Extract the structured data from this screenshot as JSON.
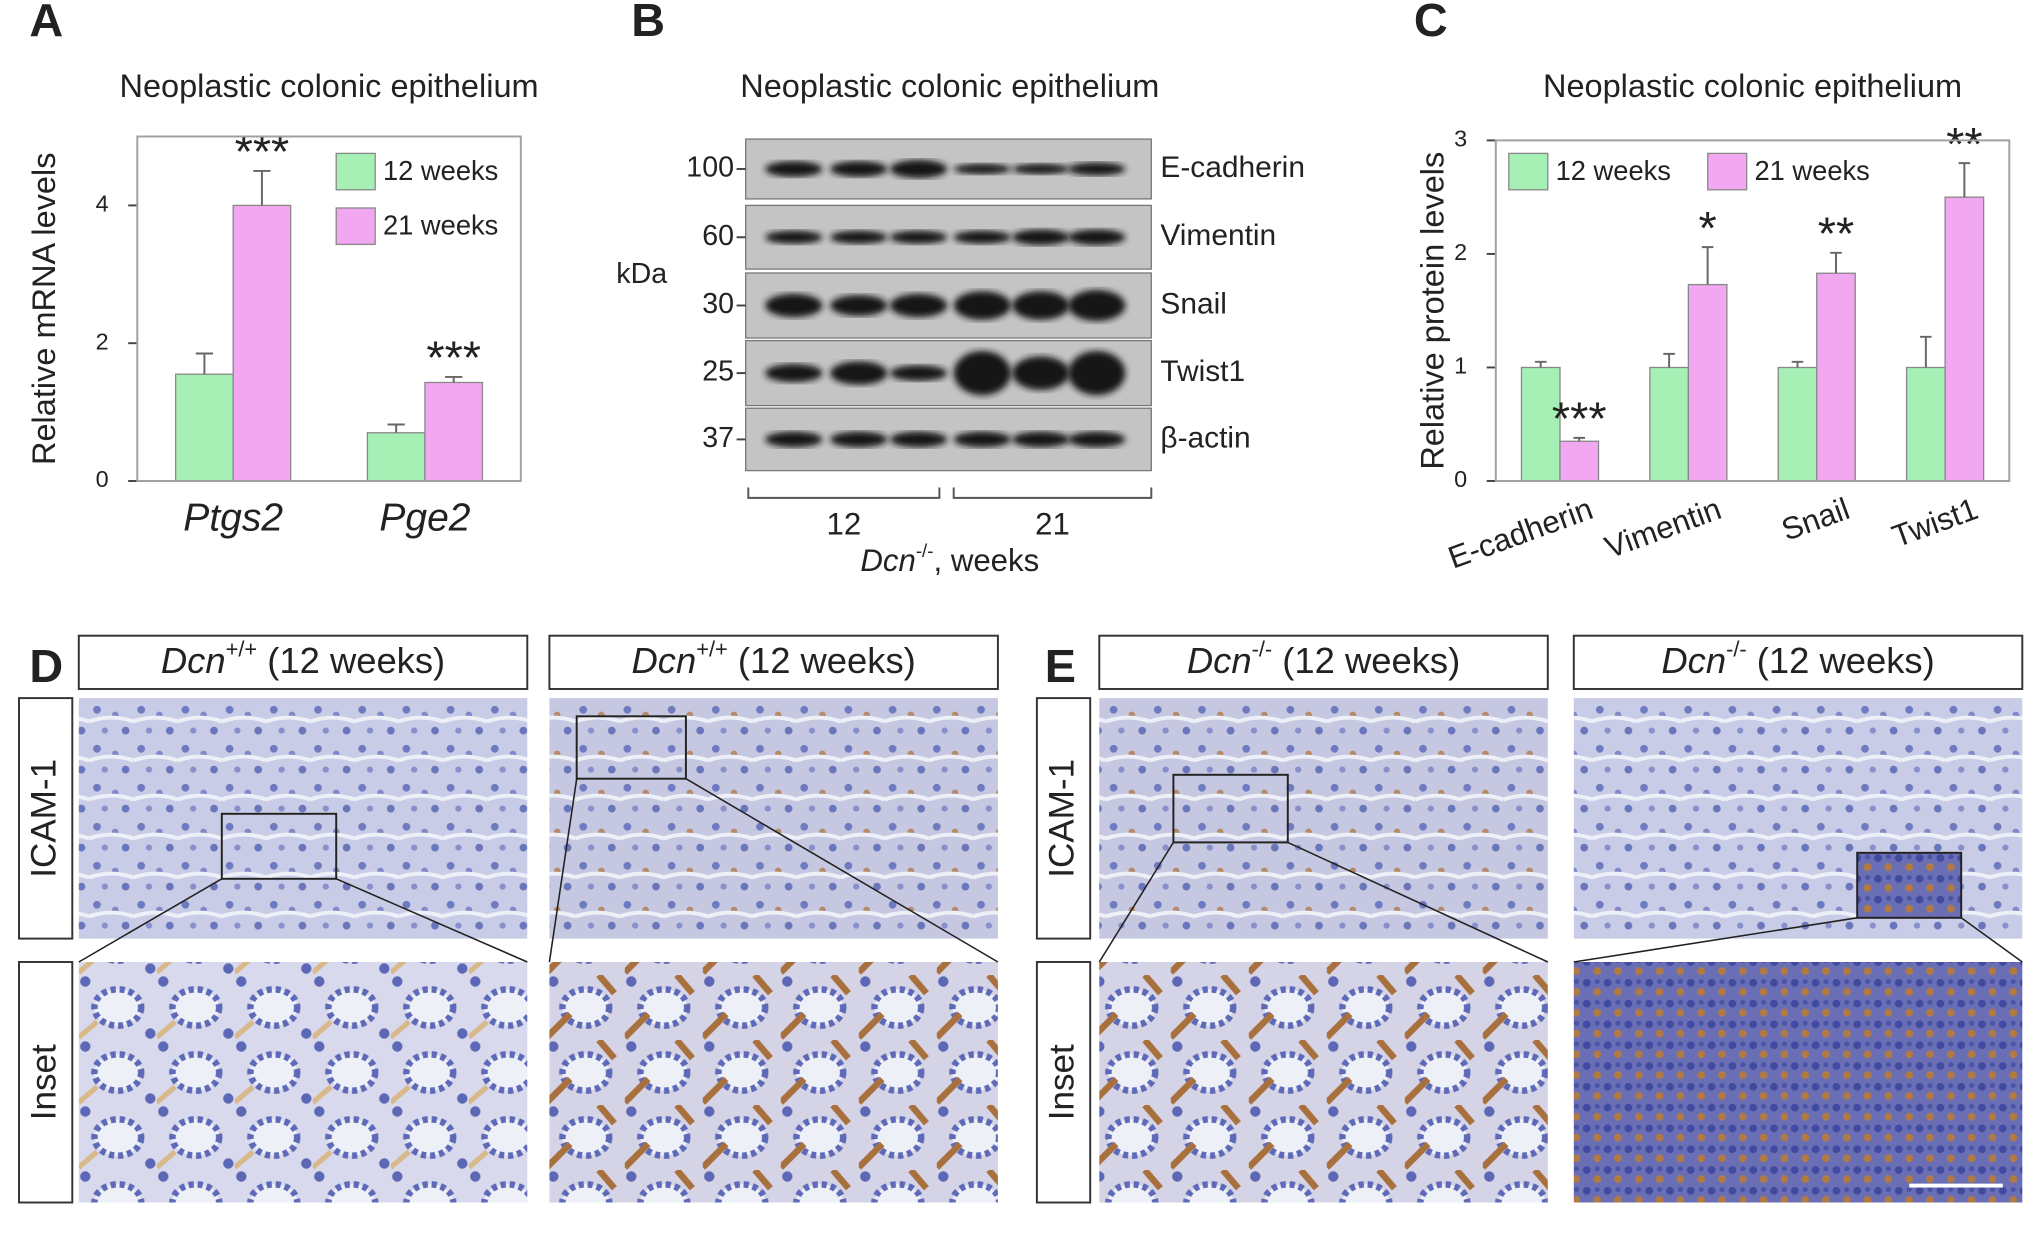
{
  "panel_labels": [
    "A",
    "B",
    "C",
    "D",
    "E"
  ],
  "chart_data": [
    {
      "type": "bar",
      "title": "Neoplastic colonic epithelium",
      "y_label": "Relative mRNA levels",
      "categories": [
        "Ptgs2",
        "Pge2"
      ],
      "series": [
        {
          "name": "12 weeks",
          "color": "#a6f0b6",
          "values": [
            1.55,
            0.7
          ],
          "errors": [
            0.3,
            0.12
          ]
        },
        {
          "name": "21 weeks",
          "color": "#f2a8f0",
          "values": [
            4.0,
            1.43
          ],
          "errors": [
            0.5,
            0.08
          ]
        }
      ],
      "annotations": [
        "***",
        "***"
      ],
      "ylim": [
        0,
        5
      ],
      "yticks": [
        0,
        2,
        4
      ],
      "legend": "upper right"
    },
    {
      "type": "bar",
      "title": "Neoplastic colonic epithelium",
      "y_label": "Relative protein levels",
      "categories": [
        "E-cadherin",
        "Vimentin",
        "Snail",
        "Twist1"
      ],
      "series": [
        {
          "name": "12 weeks",
          "color": "#a6f0b6",
          "values": [
            1.0,
            1.0,
            1.0,
            1.0
          ],
          "errors": [
            0.05,
            0.12,
            0.05,
            0.27
          ]
        },
        {
          "name": "21 weeks",
          "color": "#f2a8f0",
          "values": [
            0.35,
            1.73,
            1.83,
            2.5
          ],
          "errors": [
            0.03,
            0.33,
            0.18,
            0.3
          ]
        }
      ],
      "annotations": [
        "***",
        "*",
        "**",
        "**"
      ],
      "ylim": [
        0,
        3
      ],
      "yticks": [
        0,
        1,
        2,
        3
      ],
      "legend": "top"
    }
  ],
  "blot": {
    "title": "Neoplastic colonic epithelium",
    "unit": "kDa",
    "markers": [
      "100",
      "60",
      "30",
      "25",
      "37"
    ],
    "proteins": [
      "E-cadherin",
      "Vimentin",
      "Snail",
      "Twist1",
      "β-actin"
    ],
    "groups": [
      "12",
      "21"
    ],
    "x_label": {
      "gene": "Dcn",
      "genotype": "-/-",
      "suffix": ", weeks"
    }
  },
  "histology": {
    "row_labels": [
      "ICAM-1",
      "Inset"
    ],
    "panels": [
      {
        "title": {
          "gene": "Dcn",
          "genotype": "+/+",
          "suffix": " (12 weeks)"
        }
      },
      {
        "title": {
          "gene": "Dcn",
          "genotype": "+/+",
          "suffix": " (12 weeks)"
        }
      },
      {
        "title": {
          "gene": "Dcn",
          "genotype": "-/-",
          "suffix": " (12 weeks)"
        }
      },
      {
        "title": {
          "gene": "Dcn",
          "genotype": "-/-",
          "suffix": " (12 weeks)"
        }
      }
    ]
  }
}
